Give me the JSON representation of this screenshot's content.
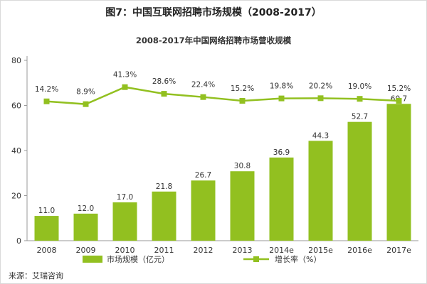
{
  "figure_title": "图7：中国互联网招聘市场规模（2008-2017）",
  "source": "来源：艾瑞咨询",
  "colors": {
    "bar": "#92c020",
    "line": "#92c020",
    "axis": "#999999"
  },
  "chart_data": {
    "type": "bar",
    "title": "2008-2017年中国网络招聘市场营收规模",
    "categories": [
      "2008",
      "2009",
      "2010",
      "2011",
      "2012",
      "2013",
      "2014e",
      "2015e",
      "2016e",
      "2017e"
    ],
    "ylim": [
      0,
      80
    ],
    "yticks": [
      0,
      20,
      40,
      60,
      80
    ],
    "grid": false,
    "legend_position": "bottom",
    "series": [
      {
        "name": "市场规模（亿元）",
        "type": "bar",
        "values": [
          11.0,
          12.0,
          17.0,
          21.8,
          26.7,
          30.8,
          36.9,
          44.3,
          52.7,
          60.7
        ],
        "labels": [
          "11.0",
          "12.0",
          "17.0",
          "21.8",
          "26.7",
          "30.8",
          "36.9",
          "44.3",
          "52.7",
          "60.7"
        ]
      },
      {
        "name": "增长率（%）",
        "type": "line",
        "values": [
          14.2,
          8.9,
          41.3,
          28.6,
          22.4,
          15.2,
          19.8,
          20.2,
          19.0,
          15.2
        ],
        "labels": [
          "14.2%",
          "8.9%",
          "41.3%",
          "28.6%",
          "22.4%",
          "15.2%",
          "19.8%",
          "20.2%",
          "19.0%",
          "15.2%"
        ]
      }
    ]
  }
}
